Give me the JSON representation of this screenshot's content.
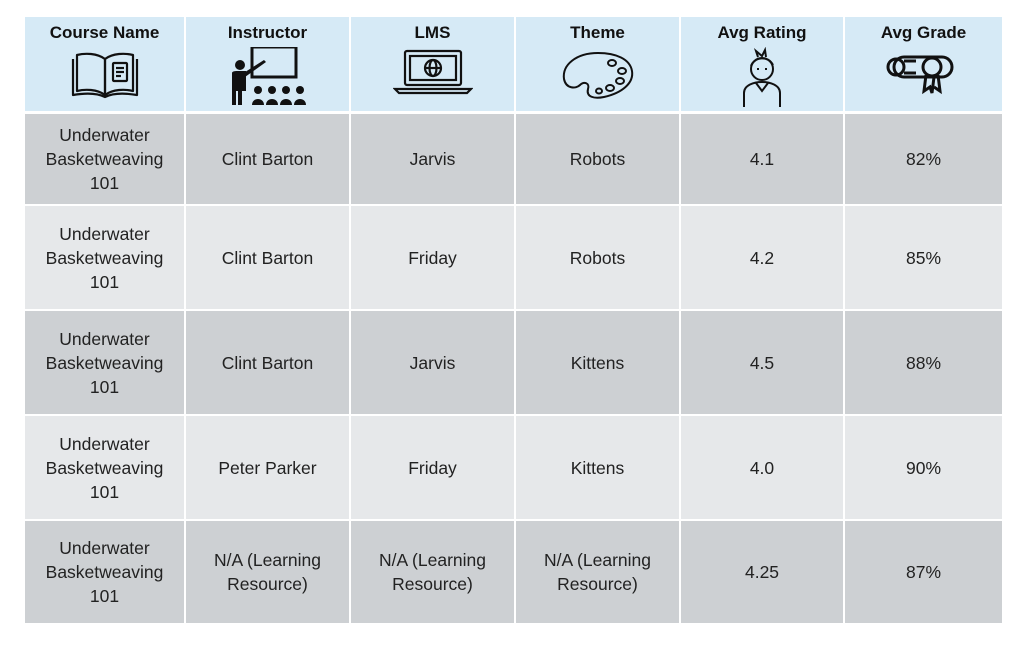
{
  "table": {
    "headers": [
      {
        "label": "Course Name",
        "icon": "open-book-icon"
      },
      {
        "label": "Instructor",
        "icon": "teacher-presenting-icon"
      },
      {
        "label": "LMS",
        "icon": "laptop-globe-icon"
      },
      {
        "label": "Theme",
        "icon": "paint-palette-icon"
      },
      {
        "label": "Avg Rating",
        "icon": "student-person-icon"
      },
      {
        "label": "Avg Grade",
        "icon": "diploma-scroll-icon"
      }
    ],
    "rows": [
      {
        "course": "Underwater Basketweaving 101",
        "instructor": "Clint Barton",
        "lms": "Jarvis",
        "theme": "Robots",
        "rating": "4.1",
        "grade": "82%"
      },
      {
        "course": "Underwater Basketweaving 101",
        "instructor": "Clint Barton",
        "lms": "Friday",
        "theme": "Robots",
        "rating": "4.2",
        "grade": "85%"
      },
      {
        "course": "Underwater Basketweaving 101",
        "instructor": "Clint Barton",
        "lms": "Jarvis",
        "theme": "Kittens",
        "rating": "4.5",
        "grade": "88%"
      },
      {
        "course": "Underwater Basketweaving 101",
        "instructor": "Peter Parker",
        "lms": "Friday",
        "theme": "Kittens",
        "rating": "4.0",
        "grade": "90%"
      },
      {
        "course": "Underwater Basketweaving 101",
        "instructor": "N/A (Learning Resource)",
        "lms": "N/A (Learning Resource)",
        "theme": "N/A (Learning Resource)",
        "rating": "4.25",
        "grade": "87%"
      }
    ]
  },
  "colors": {
    "header_bg": "#d6eaf6",
    "row_dark": "#cdd0d3",
    "row_light": "#e6e8ea"
  }
}
